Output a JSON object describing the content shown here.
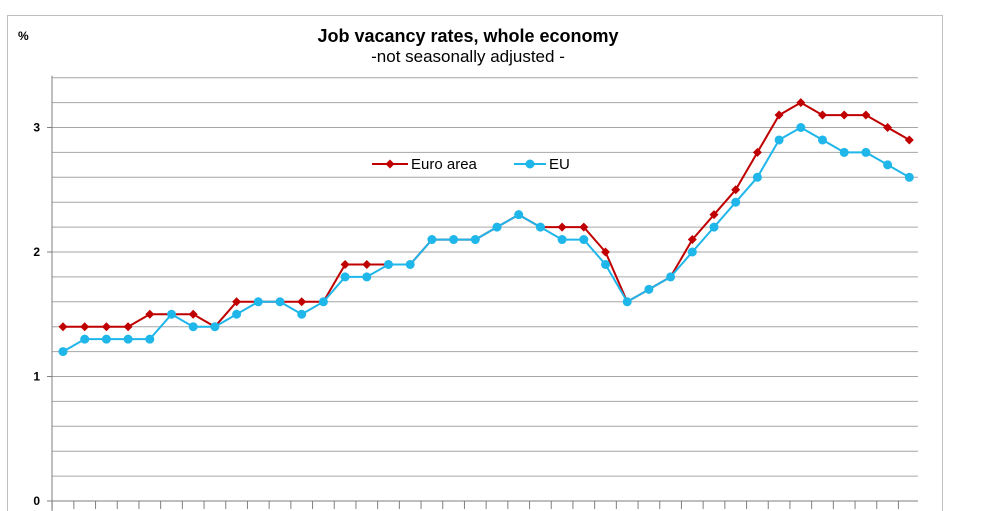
{
  "chart_data": {
    "type": "line",
    "title": "Job vacancy rates, whole economy",
    "subtitle": "-not  seasonally adjusted -",
    "ylabel": "%",
    "ylim": [
      0,
      3.4
    ],
    "yticks": [
      0,
      1,
      2,
      3
    ],
    "grid": true,
    "legend_position": "upper-center",
    "n_points": 40,
    "series": [
      {
        "name": "Euro area",
        "color": "#c00000",
        "marker": "diamond",
        "values": [
          1.4,
          1.4,
          1.4,
          1.4,
          1.5,
          1.5,
          1.5,
          1.4,
          1.6,
          1.6,
          1.6,
          1.6,
          1.6,
          1.9,
          1.9,
          1.9,
          1.9,
          2.1,
          2.1,
          2.1,
          2.2,
          2.3,
          2.2,
          2.2,
          2.2,
          2.0,
          1.6,
          1.7,
          1.8,
          2.1,
          2.3,
          2.5,
          2.8,
          3.1,
          3.2,
          3.1,
          3.1,
          3.1,
          3.0,
          2.9
        ]
      },
      {
        "name": "EU",
        "color": "#1fb6ea",
        "marker": "circle",
        "values": [
          1.2,
          1.3,
          1.3,
          1.3,
          1.3,
          1.5,
          1.4,
          1.4,
          1.5,
          1.6,
          1.6,
          1.5,
          1.6,
          1.8,
          1.8,
          1.9,
          1.9,
          2.1,
          2.1,
          2.1,
          2.2,
          2.3,
          2.2,
          2.1,
          2.1,
          1.9,
          1.6,
          1.7,
          1.8,
          2.0,
          2.2,
          2.4,
          2.6,
          2.9,
          3.0,
          2.9,
          2.8,
          2.8,
          2.7,
          2.6
        ]
      }
    ]
  }
}
